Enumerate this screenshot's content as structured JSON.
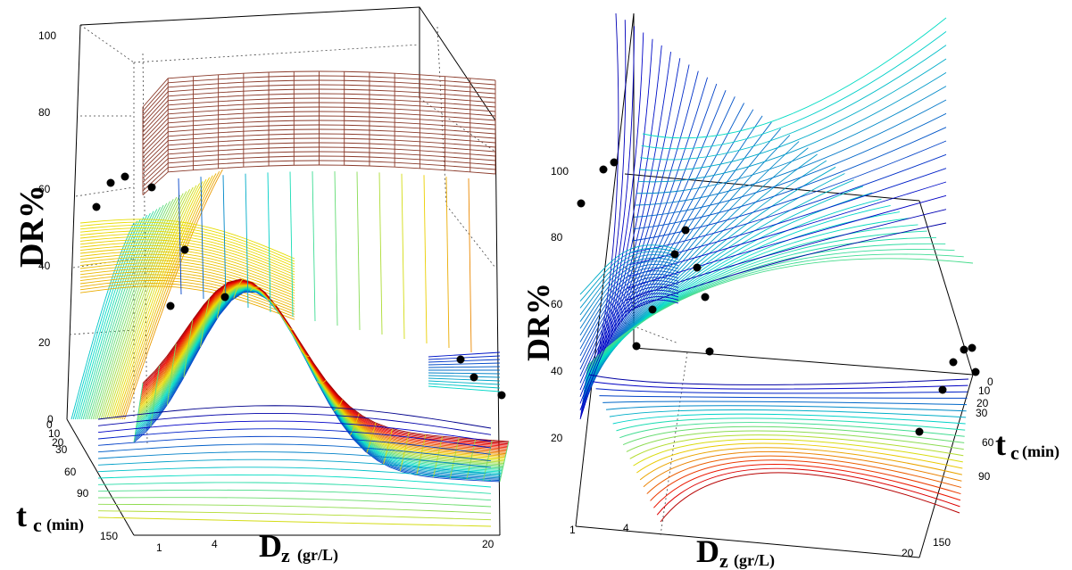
{
  "chart_data": [
    {
      "type": "surface3d",
      "zlabel": "DR%",
      "xlabel_main": "D",
      "xlabel_sub": "z",
      "xlabel_unit": "(gr/L)",
      "ylabel_main": "t",
      "ylabel_sub": "c",
      "ylabel_unit": "(min)",
      "z_ticks": [
        "100",
        "80",
        "60",
        "40",
        "20",
        "0"
      ],
      "x_ticks": [
        "1",
        "4",
        "20"
      ],
      "y_ticks": [
        "0",
        "10",
        "20",
        "30",
        "60",
        "90",
        "150"
      ],
      "zlim": [
        0,
        100
      ],
      "xlim": [
        1,
        20
      ],
      "ylim": [
        0,
        150
      ],
      "grid": true,
      "points": [
        {
          "x": 1,
          "y": 0,
          "z": 54
        },
        {
          "x": 2,
          "y": 10,
          "z": 60
        },
        {
          "x": 3,
          "y": 20,
          "z": 61
        },
        {
          "x": 4,
          "y": 30,
          "z": 59
        },
        {
          "x": 5,
          "y": 30,
          "z": 40
        },
        {
          "x": 6,
          "y": 60,
          "z": 28
        },
        {
          "x": 8,
          "y": 60,
          "z": 31
        },
        {
          "x": 20,
          "y": 0,
          "z": 18
        },
        {
          "x": 20,
          "y": 10,
          "z": 15
        },
        {
          "x": 20,
          "y": 20,
          "z": 11
        }
      ]
    },
    {
      "type": "surface3d",
      "zlabel": "DR%",
      "xlabel_main": "D",
      "xlabel_sub": "z",
      "xlabel_unit": "(gr/L)",
      "ylabel_main": "t",
      "ylabel_sub": "c",
      "ylabel_unit": "(min)",
      "z_ticks": [
        "100",
        "80",
        "60",
        "40",
        "20"
      ],
      "x_ticks": [
        "1",
        "4",
        "20"
      ],
      "y_ticks": [
        "0",
        "10",
        "20",
        "30",
        "60",
        "90",
        "150"
      ],
      "zlim": [
        20,
        100
      ],
      "xlim": [
        1,
        20
      ],
      "ylim": [
        0,
        150
      ],
      "grid": true,
      "points": [
        {
          "x": 1,
          "y": 0,
          "z": 91
        },
        {
          "x": 2,
          "y": 0,
          "z": 100
        },
        {
          "x": 2,
          "y": 10,
          "z": 101
        },
        {
          "x": 4,
          "y": 20,
          "z": 78
        },
        {
          "x": 4,
          "y": 30,
          "z": 82
        },
        {
          "x": 5,
          "y": 60,
          "z": 73
        },
        {
          "x": 6,
          "y": 60,
          "z": 68
        },
        {
          "x": 3,
          "y": 90,
          "z": 58
        },
        {
          "x": 2,
          "y": 150,
          "z": 50
        },
        {
          "x": 7,
          "y": 150,
          "z": 47
        },
        {
          "x": 20,
          "y": 0,
          "z": 48
        },
        {
          "x": 20,
          "y": 10,
          "z": 46
        },
        {
          "x": 20,
          "y": 20,
          "z": 44
        },
        {
          "x": 20,
          "y": 30,
          "z": 40
        },
        {
          "x": 20,
          "y": 60,
          "z": 37
        },
        {
          "x": 20,
          "y": 150,
          "z": 22
        }
      ]
    }
  ]
}
